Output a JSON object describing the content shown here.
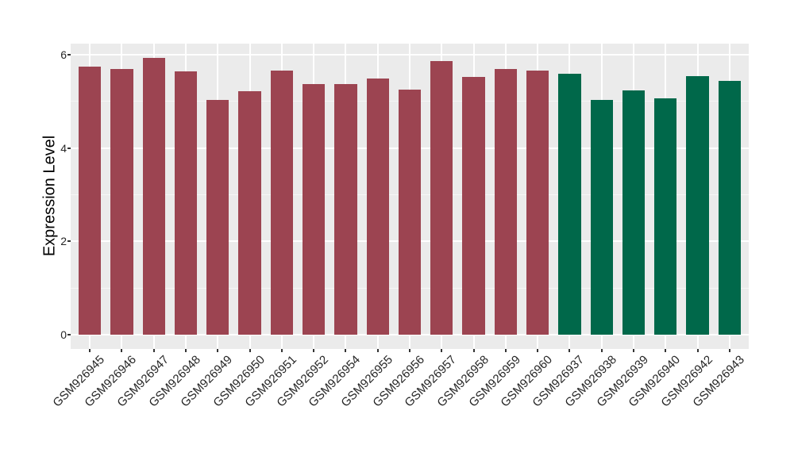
{
  "chart_data": {
    "type": "bar",
    "title": "",
    "xlabel": "",
    "ylabel": "Expression Level",
    "categories": [
      "GSM926945",
      "GSM926946",
      "GSM926947",
      "GSM926948",
      "GSM926949",
      "GSM926950",
      "GSM926951",
      "GSM926952",
      "GSM926954",
      "GSM926955",
      "GSM926956",
      "GSM926957",
      "GSM926958",
      "GSM926959",
      "GSM926960",
      "GSM926937",
      "GSM926938",
      "GSM926939",
      "GSM926940",
      "GSM926942",
      "GSM926943"
    ],
    "values": [
      5.74,
      5.7,
      5.93,
      5.64,
      5.03,
      5.22,
      5.67,
      5.38,
      5.37,
      5.49,
      5.25,
      5.87,
      5.52,
      5.69,
      5.66,
      5.59,
      5.04,
      5.23,
      5.07,
      5.54,
      5.44
    ],
    "bar_colors": [
      "#9C4451",
      "#9C4451",
      "#9C4451",
      "#9C4451",
      "#9C4451",
      "#9C4451",
      "#9C4451",
      "#9C4451",
      "#9C4451",
      "#9C4451",
      "#9C4451",
      "#9C4451",
      "#9C4451",
      "#9C4451",
      "#9C4451",
      "#00684A",
      "#00684A",
      "#00684A",
      "#00684A",
      "#00684A",
      "#00684A"
    ],
    "group_colors": {
      "left_group": "#9C4451",
      "right_group": "#00684A"
    },
    "yticks": [
      0,
      2,
      4,
      6
    ],
    "ytick_labels": [
      "0",
      "2",
      "4",
      "6"
    ],
    "minor_yticks": [
      1,
      3,
      5
    ],
    "ylim": [
      -0.31,
      6.24
    ],
    "x_tick_rotation_deg": 45,
    "legend": "none",
    "grid": "on",
    "panel_background": "#EBEBEB",
    "gridline_color": "#FFFFFF",
    "tick_mark_color": "#333333",
    "tick_text_color": "#262626"
  }
}
